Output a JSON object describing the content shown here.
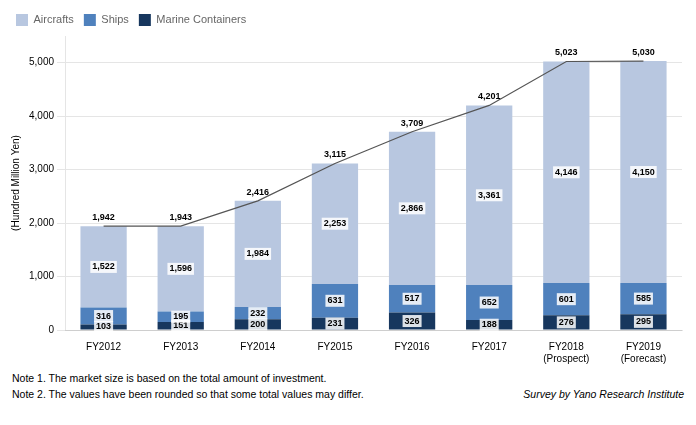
{
  "chart_data": {
    "type": "bar",
    "stacked": true,
    "categories": [
      "FY2012",
      "FY2013",
      "FY2014",
      "FY2015",
      "FY2016",
      "FY2017",
      "FY2018\n(Prospect)",
      "FY2019\n(Forecast)"
    ],
    "series": [
      {
        "name": "Marine Containers",
        "color": "#17375e",
        "values": [
          103,
          151,
          200,
          231,
          326,
          188,
          276,
          295
        ]
      },
      {
        "name": "Ships",
        "color": "#4f81bd",
        "values": [
          316,
          195,
          232,
          631,
          517,
          652,
          601,
          585
        ]
      },
      {
        "name": "Aircrafts",
        "color": "#b8c7e0",
        "values": [
          1522,
          1596,
          1984,
          2253,
          2866,
          3361,
          4146,
          4150
        ],
        "value_labels": [
          "1,522",
          "1,596",
          "1,984",
          "2,253",
          "2,866",
          "3,361",
          "4,146",
          "4,150"
        ]
      },
      {
        "type": "line",
        "color": "#555555",
        "values": [
          1942,
          1943,
          2416,
          3115,
          3709,
          4201,
          5023,
          5030
        ],
        "value_labels": [
          "1,942",
          "1,943",
          "2,416",
          "3,115",
          "3,709",
          "4,201",
          "5,023",
          "5,030"
        ]
      }
    ],
    "ylabel": "(Hundred Million Yen)",
    "ylim": [
      0,
      5500
    ],
    "yticks": [
      0,
      {
        "value": 1000,
        "label": "1,000"
      },
      {
        "value": 2000,
        "label": "2,000"
      },
      {
        "value": 3000,
        "label": "3,000"
      },
      {
        "value": 4000,
        "label": "4,000"
      },
      {
        "value": 5000,
        "label": "5,000"
      }
    ],
    "grid": "y",
    "legend": "upper left",
    "data_labels": true,
    "annotations": [
      "Note 1. The market size is based on the total amount of investment.",
      "Note 2. The values have been rounded so that some total values may differ."
    ],
    "source": "Survey by Yano Research Institute"
  }
}
